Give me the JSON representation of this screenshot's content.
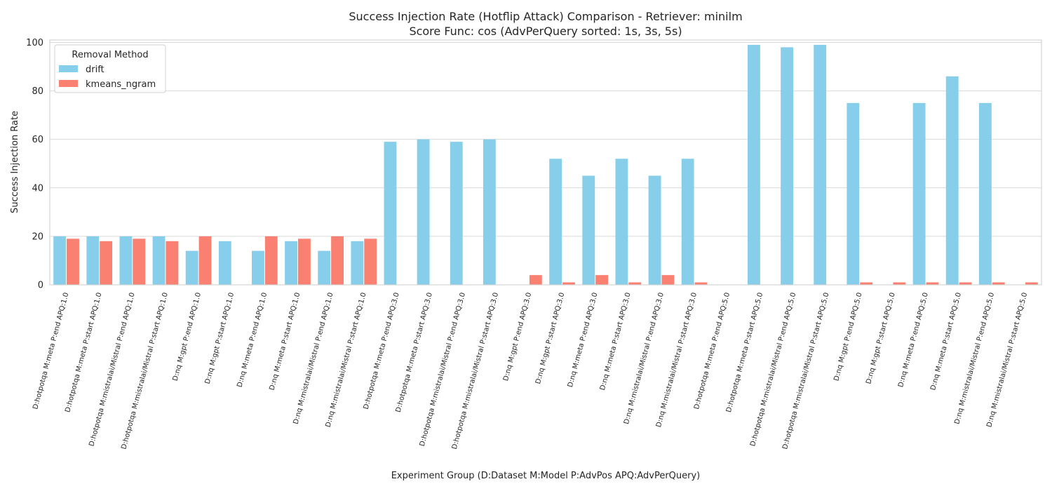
{
  "chart_data": {
    "type": "bar",
    "title": "Success Injection Rate (Hotflip Attack) Comparison - Retriever: minilm",
    "subtitle": "Score Func: cos (AdvPerQuery sorted: 1s, 3s, 5s)",
    "xlabel": "Experiment Group (D:Dataset M:Model P:AdvPos APQ:AdvPerQuery)",
    "ylabel": "Success Injection Rate",
    "ylim": [
      0,
      101
    ],
    "yticks": [
      0,
      20,
      40,
      60,
      80,
      100
    ],
    "grid": true,
    "legend": {
      "title": "Removal Method",
      "position": "top-left"
    },
    "categories": [
      "D:hotpotqa M:meta P:end APQ:1.0",
      "D:hotpotqa M:meta P:start APQ:1.0",
      "D:hotpotqa M:mistralai/Mistral P:end APQ:1.0",
      "D:hotpotqa M:mistralai/Mistral P:start APQ:1.0",
      "D:nq M:gpt P:end APQ:1.0",
      "D:nq M:gpt P:start APQ:1.0",
      "D:nq M:meta P:end APQ:1.0",
      "D:nq M:meta P:start APQ:1.0",
      "D:nq M:mistralai/Mistral P:end APQ:1.0",
      "D:nq M:mistralai/Mistral P:start APQ:1.0",
      "D:hotpotqa M:meta P:end APQ:3.0",
      "D:hotpotqa M:meta P:start APQ:3.0",
      "D:hotpotqa M:mistralai/Mistral P:end APQ:3.0",
      "D:hotpotqa M:mistralai/Mistral P:start APQ:3.0",
      "D:nq M:gpt P:end APQ:3.0",
      "D:nq M:gpt P:start APQ:3.0",
      "D:nq M:meta P:end APQ:3.0",
      "D:nq M:meta P:start APQ:3.0",
      "D:nq M:mistralai/Mistral P:end APQ:3.0",
      "D:nq M:mistralai/Mistral P:start APQ:3.0",
      "D:hotpotqa M:meta P:end APQ:5.0",
      "D:hotpotqa M:meta P:start APQ:5.0",
      "D:hotpotqa M:mistralai/Mistral P:end APQ:5.0",
      "D:hotpotqa M:mistralai/Mistral P:start APQ:5.0",
      "D:nq M:gpt P:end APQ:5.0",
      "D:nq M:gpt P:start APQ:5.0",
      "D:nq M:meta P:end APQ:5.0",
      "D:nq M:meta P:start APQ:5.0",
      "D:nq M:mistralai/Mistral P:end APQ:5.0",
      "D:nq M:mistralai/Mistral P:start APQ:5.0"
    ],
    "series": [
      {
        "name": "drift",
        "color": "#87ceeb",
        "values": [
          20,
          20,
          20,
          20,
          14,
          18,
          14,
          18,
          14,
          18,
          59,
          60,
          59,
          60,
          null,
          52,
          45,
          52,
          45,
          52,
          null,
          99,
          98,
          99,
          75,
          null,
          75,
          86,
          75,
          null
        ]
      },
      {
        "name": "kmeans_ngram",
        "color": "#fa8072",
        "values": [
          19,
          18,
          19,
          18,
          20,
          null,
          20,
          19,
          20,
          19,
          null,
          null,
          null,
          null,
          4,
          1,
          4,
          1,
          4,
          1,
          null,
          null,
          null,
          null,
          1,
          1,
          1,
          1,
          1,
          1
        ]
      }
    ]
  }
}
